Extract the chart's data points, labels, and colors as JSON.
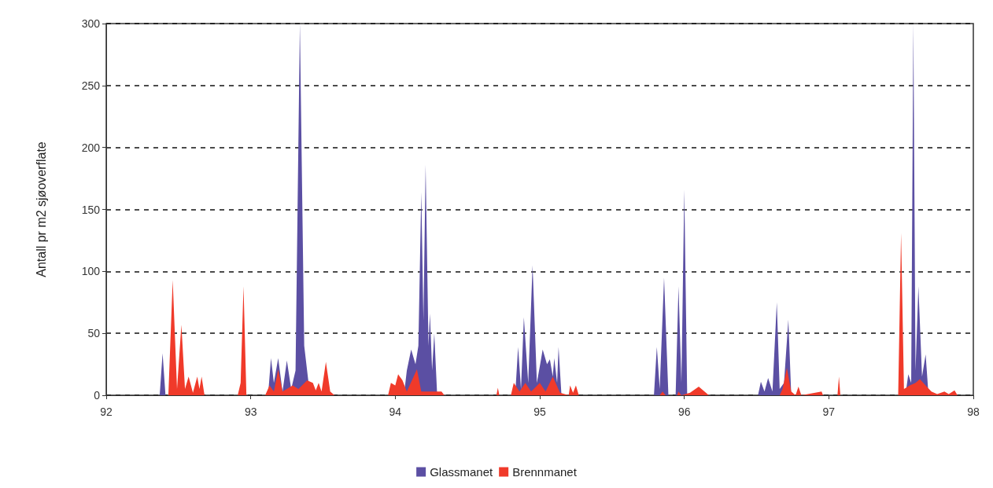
{
  "chart_data": {
    "type": "area",
    "ylabel": "Antall pr m2 sjøoverflate",
    "xlim": [
      92,
      98
    ],
    "xticks": [
      92,
      93,
      94,
      95,
      96,
      97,
      98
    ],
    "ylim": [
      0,
      300
    ],
    "yticks": [
      0,
      50,
      100,
      150,
      200,
      250,
      300
    ],
    "grid": "y",
    "legend": "bottom",
    "series": [
      {
        "name": "Glassmanet",
        "color": "#5b4fa3",
        "x": [
          92,
          92.37,
          92.39,
          92.41,
          93.12,
          93.14,
          93.16,
          93.19,
          93.22,
          93.25,
          93.28,
          93.31,
          93.34,
          93.37,
          93.4,
          93.42,
          94.06,
          94.08,
          94.11,
          94.14,
          94.16,
          94.18,
          94.195,
          94.21,
          94.23,
          94.24,
          94.255,
          94.27,
          94.29,
          94.83,
          94.85,
          94.87,
          94.89,
          94.92,
          94.95,
          94.98,
          95.01,
          95.02,
          95.05,
          95.07,
          95.09,
          95.1,
          95.12,
          95.13,
          95.15,
          95.79,
          95.81,
          95.83,
          95.86,
          95.89,
          95.94,
          95.96,
          95.98,
          96,
          96.02,
          96.51,
          96.53,
          96.555,
          96.58,
          96.61,
          96.64,
          96.66,
          96.69,
          96.72,
          96.74,
          97.53,
          97.55,
          97.57,
          97.585,
          97.6,
          97.62,
          97.645,
          97.67,
          97.69,
          98
        ],
        "values": [
          0,
          0,
          34,
          0,
          0,
          30,
          10,
          30,
          3,
          28,
          5,
          20,
          300,
          40,
          10,
          0,
          0,
          20,
          37,
          25,
          40,
          164,
          60,
          186,
          40,
          66,
          20,
          50,
          0,
          0,
          39,
          5,
          63,
          10,
          105,
          10,
          30,
          37,
          25,
          29,
          15,
          30,
          10,
          39,
          0,
          0,
          39,
          5,
          95,
          0,
          0,
          88,
          10,
          166,
          0,
          0,
          11,
          3,
          14,
          3,
          75,
          5,
          10,
          61,
          0,
          0,
          17,
          10,
          300,
          20,
          88,
          15,
          33,
          0,
          0
        ]
      },
      {
        "name": "Brennmanet",
        "color": "#f03a2a",
        "x": [
          92,
          92.43,
          92.46,
          92.49,
          92.52,
          92.545,
          92.57,
          92.6,
          92.63,
          92.645,
          92.66,
          92.68,
          92.91,
          92.93,
          92.95,
          92.97,
          93.1,
          93.13,
          93.16,
          93.19,
          93.22,
          93.29,
          93.33,
          93.39,
          93.43,
          93.45,
          93.47,
          93.49,
          93.52,
          93.55,
          93.58,
          93.95,
          93.97,
          94,
          94.02,
          94.05,
          94.08,
          94.15,
          94.18,
          94.32,
          94.34,
          94.7,
          94.71,
          94.72,
          94.8,
          94.82,
          94.86,
          94.9,
          94.94,
          95,
          95.04,
          95.09,
          95.14,
          95.2,
          95.21,
          95.23,
          95.25,
          95.27,
          95.83,
          95.85,
          95.87,
          95.95,
          95.96,
          95.98,
          96.04,
          96.1,
          96.14,
          96.17,
          96.66,
          96.68,
          96.71,
          96.74,
          96.77,
          96.79,
          96.81,
          96.95,
          96.96,
          97.06,
          97.07,
          97.08,
          97.48,
          97.5,
          97.52,
          97.56,
          97.6,
          97.63,
          97.67,
          97.71,
          97.75,
          97.8,
          97.83,
          97.87,
          97.89,
          98
        ],
        "values": [
          0,
          0,
          93,
          5,
          57,
          5,
          15,
          2,
          15,
          5,
          15,
          0,
          0,
          10,
          88,
          0,
          0,
          8,
          3,
          21,
          3,
          8,
          5,
          12,
          10,
          4,
          10,
          3,
          27,
          3,
          0,
          0,
          10,
          8,
          17,
          12,
          3,
          21,
          3,
          3,
          0,
          0,
          6,
          0,
          0,
          10,
          3,
          10,
          3,
          10,
          3,
          15,
          2,
          0,
          8,
          2,
          8,
          0,
          0,
          3,
          0,
          0,
          3,
          0,
          2,
          7,
          3,
          0,
          0,
          5,
          22,
          3,
          0,
          7,
          0,
          3,
          0,
          0,
          15,
          0,
          0,
          131,
          5,
          8,
          10,
          13,
          8,
          3,
          1,
          3,
          1,
          4,
          0,
          0
        ]
      }
    ]
  }
}
